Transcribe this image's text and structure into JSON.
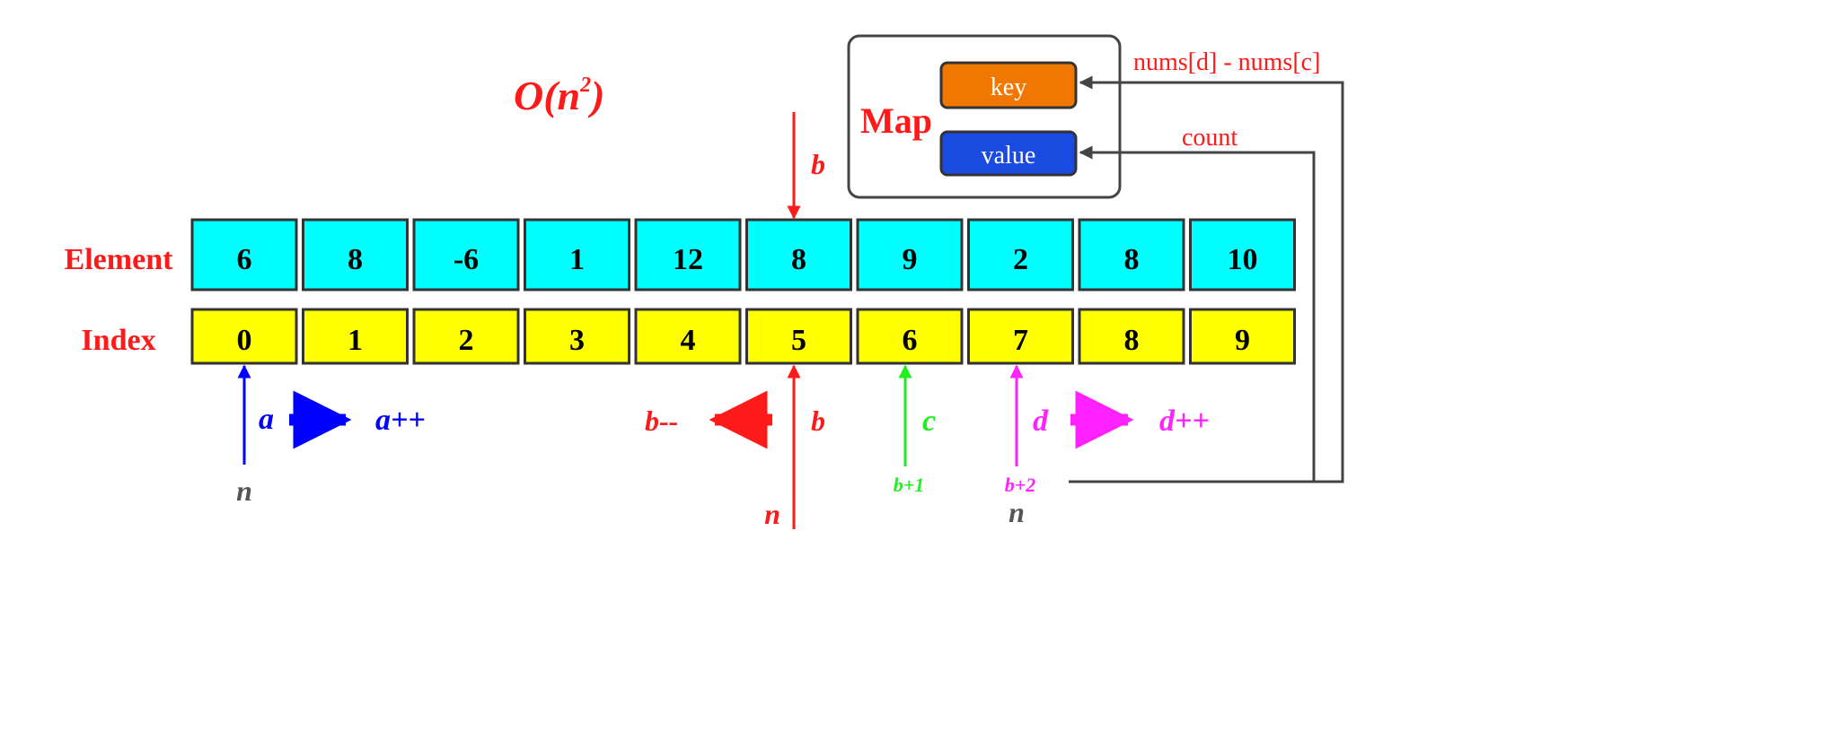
{
  "complexity": {
    "base": "O(n",
    "exp": "2",
    "close": ")"
  },
  "row_labels": {
    "element": "Element",
    "index": "Index"
  },
  "elements": [
    "6",
    "8",
    "-6",
    "1",
    "12",
    "8",
    "9",
    "2",
    "8",
    "10"
  ],
  "indices": [
    "0",
    "1",
    "2",
    "3",
    "4",
    "5",
    "6",
    "7",
    "8",
    "9"
  ],
  "map": {
    "title": "Map",
    "key": "key",
    "value": "value"
  },
  "map_inputs": {
    "key_source": "nums[d] - nums[c]",
    "value_source": "count"
  },
  "pointers": {
    "b_top": "b",
    "a": "a",
    "a_move": "a++",
    "a_bound": "n",
    "b": "b",
    "b_move": "b--",
    "b_bound": "n",
    "c": "c",
    "c_start": "b+1",
    "d": "d",
    "d_move": "d++",
    "d_start": "b+2",
    "d_bound": "n"
  },
  "colors": {
    "red": "#ff1a1a",
    "blue": "#0000ff",
    "green": "#22ee22",
    "magenta": "#ff22ff",
    "gray": "#555555",
    "element_fill": "#00ffff",
    "index_fill": "#ffff00",
    "key_fill": "#f07800",
    "value_fill": "#1a4be0"
  }
}
